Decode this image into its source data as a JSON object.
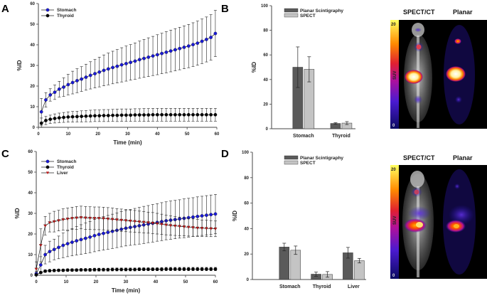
{
  "panels": {
    "A": {
      "letter": "A"
    },
    "B": {
      "letter": "B"
    },
    "C": {
      "letter": "C"
    },
    "D": {
      "letter": "D"
    }
  },
  "images": {
    "top": {
      "left_title": "SPECT/CT",
      "right_title": "Planar",
      "colorbar_label": "SUV",
      "colorbar_max": "20",
      "colorbar_min": "0"
    },
    "bottom": {
      "left_title": "SPECT/CT",
      "right_title": "Planar",
      "colorbar_label": "SUV",
      "colorbar_max": "20",
      "colorbar_min": "0"
    }
  },
  "chart_data": [
    {
      "id": "A",
      "type": "line",
      "title": "",
      "xlabel": "Time (min)",
      "ylabel": "%ID",
      "xlim": [
        0,
        60
      ],
      "ylim": [
        0,
        60
      ],
      "xticks": [
        "0",
        "10",
        "20",
        "30",
        "40",
        "50",
        "60"
      ],
      "yticks": [
        "0",
        "10",
        "20",
        "30",
        "40",
        "50",
        "60"
      ],
      "legend_position": "top-left",
      "series": [
        {
          "name": "Stomach",
          "color": "#1a1ad6",
          "marker": "circle",
          "x": [
            1,
            2.5,
            4,
            5.5,
            7,
            8.5,
            10,
            11.5,
            13,
            14.5,
            16,
            17.5,
            19,
            20.5,
            22,
            23.5,
            25,
            26.5,
            28,
            29.5,
            31,
            32.5,
            34,
            35.5,
            37,
            38.5,
            40,
            41.5,
            43,
            44.5,
            46,
            47.5,
            49,
            50.5,
            52,
            53.5,
            55,
            56.5,
            58,
            59.5
          ],
          "y": [
            7.5,
            13.3,
            15.7,
            17,
            18.5,
            19.5,
            20.7,
            21.7,
            22.6,
            23.4,
            24.3,
            25.2,
            26,
            26.8,
            27.6,
            28.3,
            29,
            29.6,
            30.3,
            30.9,
            31.5,
            32.1,
            32.8,
            33.4,
            34,
            34.6,
            35.2,
            35.8,
            36.4,
            37,
            37.6,
            38.2,
            38.8,
            39.4,
            40.1,
            40.8,
            41.7,
            42.6,
            43.6,
            45.5
          ],
          "err": [
            6.5,
            3.5,
            3,
            3.5,
            3.8,
            4.5,
            5,
            5.5,
            5.8,
            6,
            6.3,
            6.6,
            6.9,
            7.2,
            7.5,
            7.7,
            7.9,
            8.1,
            8.3,
            8.5,
            8.6,
            8.8,
            9,
            9.2,
            9.4,
            9.5,
            9.7,
            9.8,
            10,
            10.1,
            10.2,
            10.3,
            10.4,
            10.5,
            10.6,
            10.7,
            10.8,
            10.9,
            11,
            11.2
          ]
        },
        {
          "name": "Thyroid",
          "color": "#000000",
          "marker": "circle",
          "x": [
            1,
            2.5,
            4,
            5.5,
            7,
            8.5,
            10,
            11.5,
            13,
            14.5,
            16,
            17.5,
            19,
            20.5,
            22,
            23.5,
            25,
            26.5,
            28,
            29.5,
            31,
            32.5,
            34,
            35.5,
            37,
            38.5,
            40,
            41.5,
            43,
            44.5,
            46,
            47.5,
            49,
            50.5,
            52,
            53.5,
            55,
            56.5,
            58,
            59.5
          ],
          "y": [
            2,
            3.3,
            3.9,
            4.3,
            4.6,
            4.8,
            5,
            5.1,
            5.2,
            5.3,
            5.4,
            5.5,
            5.6,
            5.6,
            5.7,
            5.7,
            5.8,
            5.8,
            5.9,
            5.9,
            5.9,
            6,
            6,
            6,
            6,
            6.1,
            6.1,
            6.1,
            6.1,
            6.1,
            6.1,
            6.1,
            6.1,
            6.1,
            6.1,
            6.1,
            6.1,
            6.1,
            6.1,
            6.1
          ],
          "err": [
            2.5,
            2,
            2,
            2.2,
            2.3,
            2.4,
            2.5,
            2.6,
            2.6,
            2.7,
            2.7,
            2.8,
            2.8,
            2.8,
            2.9,
            2.9,
            2.9,
            3,
            3,
            3,
            3,
            3,
            3,
            3.1,
            3.1,
            3.1,
            3.1,
            3.1,
            3.1,
            3.1,
            3.1,
            3.1,
            3.1,
            3.1,
            3.1,
            3.1,
            3.1,
            3.1,
            3.1,
            3.1
          ]
        }
      ]
    },
    {
      "id": "B",
      "type": "bar",
      "title": "",
      "xlabel": "",
      "ylabel": "%ID",
      "ylim": [
        0,
        100
      ],
      "yticks": [
        "0",
        "20",
        "40",
        "60",
        "80",
        "100"
      ],
      "categories": [
        "Stomach",
        "Thyroid"
      ],
      "legend_position": "top",
      "series": [
        {
          "name": "Planar Scintigraphy",
          "color": "#5a5a5a",
          "values": [
            50,
            4.3
          ],
          "err": [
            16.5,
            0.6
          ]
        },
        {
          "name": "SPECT",
          "color": "#c4c4c4",
          "values": [
            48.3,
            4.6
          ],
          "err": [
            10.2,
            1.2
          ]
        }
      ]
    },
    {
      "id": "C",
      "type": "line",
      "title": "",
      "xlabel": "Time (min)",
      "ylabel": "%ID",
      "xlim": [
        0,
        60
      ],
      "ylim": [
        0,
        60
      ],
      "xticks": [
        "0",
        "10",
        "20",
        "30",
        "40",
        "50",
        "60"
      ],
      "yticks": [
        "0",
        "10",
        "20",
        "30",
        "40",
        "50",
        "60"
      ],
      "legend_position": "top-left",
      "series": [
        {
          "name": "Stomach",
          "color": "#1a1ad6",
          "marker": "circle",
          "x": [
            0,
            1.5,
            3,
            4.5,
            6,
            7.5,
            9,
            10.5,
            12,
            13.5,
            15,
            16.5,
            18,
            19.5,
            21,
            22.5,
            24,
            25.5,
            27,
            28.5,
            30,
            31.5,
            33,
            34.5,
            36,
            37.5,
            39,
            40.5,
            42,
            43.5,
            45,
            46.5,
            48,
            49.5,
            51,
            52.5,
            54,
            55.5,
            57,
            58.5,
            60
          ],
          "y": [
            0.8,
            5,
            10,
            11.5,
            12.5,
            13.5,
            14.5,
            15.3,
            16,
            16.7,
            17.3,
            17.9,
            18.5,
            19.2,
            19.8,
            20.3,
            20.8,
            21.3,
            21.8,
            22.3,
            22.8,
            23.2,
            23.6,
            24,
            24.4,
            24.8,
            25.2,
            25.6,
            26,
            26.4,
            26.7,
            27,
            27.3,
            27.6,
            27.9,
            28.2,
            28.5,
            28.8,
            29.1,
            29.4,
            29.7
          ],
          "err": [
            1,
            4,
            4.5,
            5,
            5,
            5.5,
            6,
            6.3,
            6.6,
            6.9,
            7.2,
            7.4,
            7.6,
            7.8,
            8,
            8.1,
            8.2,
            8.3,
            8.4,
            8.5,
            8.6,
            8.7,
            8.8,
            8.9,
            9,
            9,
            9.1,
            9.1,
            9.2,
            9.2,
            9.3,
            9.3,
            9.3,
            9.4,
            9.4,
            9.4,
            9.5,
            9.5,
            9.5,
            9.5,
            9.5
          ]
        },
        {
          "name": "Thyroid",
          "color": "#000000",
          "marker": "circle",
          "x": [
            0,
            1.5,
            3,
            4.5,
            6,
            7.5,
            9,
            10.5,
            12,
            13.5,
            15,
            16.5,
            18,
            19.5,
            21,
            22.5,
            24,
            25.5,
            27,
            28.5,
            30,
            31.5,
            33,
            34.5,
            36,
            37.5,
            39,
            40.5,
            42,
            43.5,
            45,
            46.5,
            48,
            49.5,
            51,
            52.5,
            54,
            55.5,
            57,
            58.5,
            60
          ],
          "y": [
            0.2,
            1.3,
            2,
            2.2,
            2.3,
            2.4,
            2.4,
            2.5,
            2.5,
            2.5,
            2.6,
            2.6,
            2.6,
            2.7,
            2.7,
            2.7,
            2.7,
            2.8,
            2.8,
            2.8,
            2.8,
            2.8,
            2.8,
            2.9,
            2.9,
            2.9,
            2.9,
            2.9,
            2.9,
            3,
            3,
            3,
            3,
            3,
            3,
            3,
            3,
            3,
            3,
            3,
            3
          ],
          "err": [
            0.3,
            0.5,
            0.6,
            0.6,
            0.6,
            0.6,
            0.6,
            0.6,
            0.6,
            0.6,
            0.6,
            0.6,
            0.7,
            0.7,
            0.7,
            0.7,
            0.7,
            0.7,
            0.7,
            0.7,
            0.7,
            0.7,
            0.7,
            0.7,
            0.7,
            0.7,
            0.7,
            0.7,
            0.8,
            0.8,
            0.8,
            0.8,
            0.8,
            0.8,
            0.8,
            0.8,
            0.8,
            0.8,
            0.8,
            0.8,
            0.8
          ]
        },
        {
          "name": "Liver",
          "color": "#c01818",
          "marker": "triangle-down",
          "x": [
            0,
            1.5,
            3,
            4.5,
            6,
            7.5,
            9,
            10.5,
            12,
            13.5,
            15,
            16.5,
            18,
            19.5,
            21,
            22.5,
            24,
            25.5,
            27,
            28.5,
            30,
            31.5,
            33,
            34.5,
            36,
            37.5,
            39,
            40.5,
            42,
            43.5,
            45,
            46.5,
            48,
            49.5,
            51,
            52.5,
            54,
            55.5,
            57,
            58.5,
            60
          ],
          "y": [
            3,
            14.5,
            24,
            25.5,
            26,
            26.5,
            27,
            27.3,
            27.6,
            27.8,
            28,
            27.8,
            27.7,
            27.6,
            27.6,
            27.5,
            27.3,
            27.1,
            26.9,
            26.7,
            26.5,
            26.3,
            26.1,
            25.9,
            25.7,
            25.5,
            25.3,
            25,
            24.7,
            24.4,
            24.1,
            23.9,
            23.7,
            23.5,
            23.3,
            23.1,
            22.9,
            22.8,
            22.7,
            22.6,
            22.5
          ],
          "err": [
            3.5,
            8,
            4.5,
            4.5,
            5,
            5,
            5.2,
            5.3,
            5.4,
            5.5,
            5.5,
            5.5,
            5.5,
            5.5,
            5.5,
            5.5,
            5.5,
            5.5,
            5.4,
            5.4,
            5.4,
            5.3,
            5.3,
            5.2,
            5.2,
            5.1,
            5.1,
            5,
            4.9,
            4.8,
            4.7,
            4.6,
            4.5,
            4.4,
            4.3,
            4.2,
            4.1,
            4,
            4,
            3.9,
            3.8
          ]
        }
      ]
    },
    {
      "id": "D",
      "type": "bar",
      "title": "",
      "xlabel": "",
      "ylabel": "%ID",
      "ylim": [
        0,
        100
      ],
      "yticks": [
        "0",
        "20",
        "40",
        "60",
        "80",
        "100"
      ],
      "categories": [
        "Stomach",
        "Thyroid",
        "Liver"
      ],
      "legend_position": "top",
      "series": [
        {
          "name": "Planar Scintigraphy",
          "color": "#5a5a5a",
          "values": [
            25.5,
            4.2,
            21
          ],
          "err": [
            3,
            1.6,
            4.2
          ]
        },
        {
          "name": "SPECT",
          "color": "#c4c4c4",
          "values": [
            23,
            4,
            14.8
          ],
          "err": [
            3.3,
            2.2,
            1.8
          ]
        }
      ]
    }
  ]
}
